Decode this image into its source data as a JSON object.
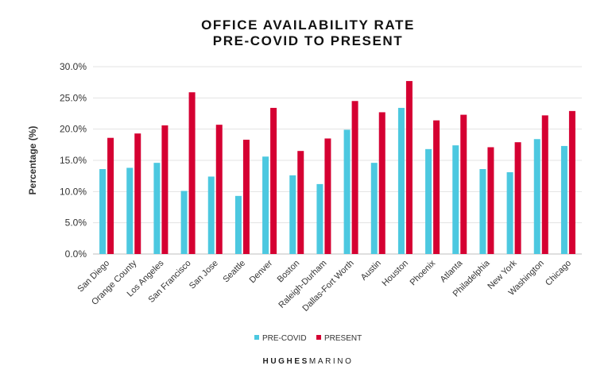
{
  "chart_data": {
    "type": "bar",
    "title": "OFFICE AVAILABILITY RATE",
    "subtitle": "PRE-COVID TO PRESENT",
    "xlabel": "",
    "ylabel": "Percentage (%)",
    "ylim": [
      0,
      30
    ],
    "yticks": [
      "0.0%",
      "5.0%",
      "10.0%",
      "15.0%",
      "20.0%",
      "25.0%",
      "30.0%"
    ],
    "grid": true,
    "legend_position": "bottom",
    "categories": [
      "San Diego",
      "Orange County",
      "Los Angeles",
      "San Francisco",
      "San Jose",
      "Seattle",
      "Denver",
      "Boston",
      "Raleigh-Durham",
      "Dallas-Fort Worth",
      "Austin",
      "Houston",
      "Phoenix",
      "Atlanta",
      "Philadelphia",
      "New York",
      "Washington",
      "Chicago"
    ],
    "series": [
      {
        "name": "PRE-COVID",
        "color": "#4CC8E0",
        "values": [
          13.6,
          13.8,
          14.6,
          10.1,
          12.4,
          9.3,
          15.6,
          12.6,
          11.2,
          19.9,
          14.6,
          23.4,
          16.8,
          17.4,
          13.6,
          13.1,
          18.4,
          17.3
        ]
      },
      {
        "name": "PRESENT",
        "color": "#D50032",
        "values": [
          18.6,
          19.3,
          20.6,
          25.9,
          20.7,
          18.3,
          23.4,
          16.5,
          18.5,
          24.5,
          22.7,
          27.7,
          21.4,
          22.3,
          17.1,
          17.9,
          22.2,
          22.9
        ]
      }
    ]
  },
  "brand": {
    "part1": "HUGHES",
    "part2": "MARINO"
  }
}
